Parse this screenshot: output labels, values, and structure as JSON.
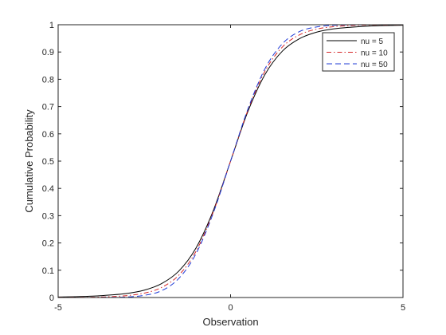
{
  "chart_data": {
    "type": "line",
    "title": "",
    "xlabel": "Observation",
    "ylabel": "Cumulative Probability",
    "xlim": [
      -5,
      5
    ],
    "ylim": [
      0,
      1
    ],
    "xticks": [
      -5,
      0,
      5
    ],
    "yticks": [
      0,
      0.1,
      0.2,
      0.3,
      0.4,
      0.5,
      0.6,
      0.7,
      0.8,
      0.9,
      1
    ],
    "xtick_labels": [
      "-5",
      "0",
      "5"
    ],
    "ytick_labels": [
      "0",
      "0.1",
      "0.2",
      "0.3",
      "0.4",
      "0.5",
      "0.6",
      "0.7",
      "0.8",
      "0.9",
      "1"
    ],
    "grid": false,
    "box": true,
    "legend": {
      "location": "top-right"
    },
    "series": [
      {
        "name": "nu = 5",
        "color": "#000000",
        "line_style": "solid",
        "x": [
          -5,
          -4.5,
          -4,
          -3.5,
          -3,
          -2.5,
          -2,
          -1.5,
          -1,
          -0.5,
          0,
          0.5,
          1,
          1.5,
          2,
          2.5,
          3,
          3.5,
          4,
          4.5,
          5
        ],
        "values": [
          0.002,
          0.003,
          0.005,
          0.009,
          0.015,
          0.027,
          0.051,
          0.097,
          0.182,
          0.319,
          0.5,
          0.681,
          0.818,
          0.903,
          0.949,
          0.973,
          0.985,
          0.991,
          0.995,
          0.997,
          0.998
        ]
      },
      {
        "name": "nu = 10",
        "color": "#d62728",
        "line_style": "dash-dot",
        "x": [
          -5,
          -4.5,
          -4,
          -3.5,
          -3,
          -2.5,
          -2,
          -1.5,
          -1,
          -0.5,
          0,
          0.5,
          1,
          1.5,
          2,
          2.5,
          3,
          3.5,
          4,
          4.5,
          5
        ],
        "values": [
          0.0003,
          0.0006,
          0.001,
          0.003,
          0.007,
          0.016,
          0.037,
          0.082,
          0.17,
          0.314,
          0.5,
          0.686,
          0.83,
          0.918,
          0.963,
          0.984,
          0.993,
          0.997,
          0.999,
          0.9994,
          0.9997
        ]
      },
      {
        "name": "nu = 50",
        "color": "#1f3bd6",
        "line_style": "dashed",
        "x": [
          -5,
          -4.5,
          -4,
          -3.5,
          -3,
          -2.5,
          -2,
          -1.5,
          -1,
          -0.5,
          0,
          0.5,
          1,
          1.5,
          2,
          2.5,
          3,
          3.5,
          4,
          4.5,
          5
        ],
        "values": [
          1e-05,
          2e-05,
          0.0001,
          0.0005,
          0.002,
          0.008,
          0.025,
          0.07,
          0.161,
          0.31,
          0.5,
          0.69,
          0.839,
          0.93,
          0.975,
          0.992,
          0.998,
          0.9995,
          0.9999,
          0.99998,
          0.99999
        ]
      }
    ]
  }
}
